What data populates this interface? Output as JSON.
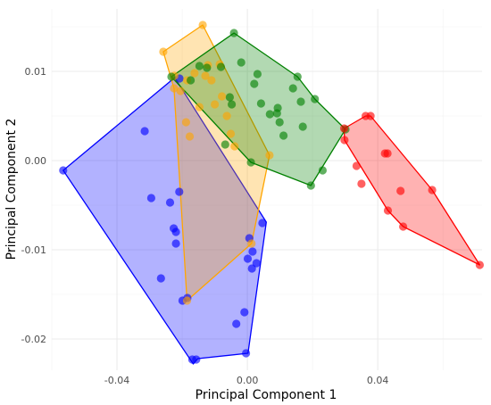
{
  "chart_data": {
    "type": "scatter",
    "title": "",
    "xlabel": "Principal Component 1",
    "ylabel": "Principal Component 2",
    "xlim": [
      -0.06,
      0.072
    ],
    "ylim": [
      -0.0235,
      0.017
    ],
    "x_ticks": [
      -0.04,
      0.0,
      0.04
    ],
    "x_tick_labels": [
      "-0.04",
      "0.00",
      "0.04"
    ],
    "y_ticks": [
      -0.02,
      -0.01,
      0.0,
      0.01
    ],
    "y_tick_labels": [
      "-0.02",
      "-0.01",
      "0.00",
      "0.01"
    ],
    "grid": true,
    "series": [
      {
        "color": "#0000ff",
        "hull": [
          [
            -0.0565,
            -0.0011
          ],
          [
            -0.0223,
            0.0093
          ],
          [
            0.0058,
            -0.0069
          ],
          [
            0.0002,
            -0.0216
          ],
          [
            -0.0152,
            -0.0222
          ],
          [
            -0.0166,
            -0.0228
          ]
        ],
        "points": [
          [
            -0.0565,
            -0.0011
          ],
          [
            -0.0315,
            0.0033
          ],
          [
            -0.0295,
            -0.0042
          ],
          [
            -0.0237,
            -0.0047
          ],
          [
            -0.0265,
            -0.0132
          ],
          [
            -0.0209,
            -0.0035
          ],
          [
            -0.0226,
            -0.0076
          ],
          [
            -0.0219,
            -0.0093
          ],
          [
            -0.0219,
            -0.008
          ],
          [
            -0.0184,
            -0.0154
          ],
          [
            -0.0199,
            -0.0157
          ],
          [
            -0.0169,
            -0.0223
          ],
          [
            -0.0157,
            -0.0223
          ],
          [
            0.0001,
            -0.011
          ],
          [
            0.0014,
            -0.0121
          ],
          [
            0.0006,
            -0.0087
          ],
          [
            0.0016,
            -0.0102
          ],
          [
            0.0028,
            -0.0115
          ],
          [
            0.0046,
            -0.007
          ],
          [
            -0.0034,
            -0.0183
          ],
          [
            -0.0004,
            -0.0216
          ],
          [
            -0.0009,
            -0.017
          ],
          [
            -0.0208,
            0.0092
          ]
        ]
      },
      {
        "color": "#ffa500",
        "hull": [
          [
            -0.0258,
            0.0122
          ],
          [
            -0.0137,
            0.0152
          ],
          [
            0.0068,
            0.0006
          ],
          [
            0.0013,
            -0.0093
          ],
          [
            -0.0185,
            -0.0157
          ],
          [
            -0.0225,
            0.0081
          ]
        ],
        "points": [
          [
            -0.0258,
            0.0122
          ],
          [
            -0.0137,
            0.0152
          ],
          [
            -0.0224,
            0.0095
          ],
          [
            -0.0205,
            0.0078
          ],
          [
            -0.0185,
            0.009
          ],
          [
            -0.0188,
            0.0043
          ],
          [
            -0.0177,
            0.0027
          ],
          [
            -0.0162,
            0.0098
          ],
          [
            -0.0147,
            0.006
          ],
          [
            -0.0121,
            0.0107
          ],
          [
            -0.0129,
            0.0095
          ],
          [
            -0.01,
            0.0063
          ],
          [
            -0.0085,
            0.0108
          ],
          [
            -0.0078,
            0.0072
          ],
          [
            -0.0063,
            0.005
          ],
          [
            -0.0051,
            0.003
          ],
          [
            -0.0039,
            0.0016
          ],
          [
            0.0068,
            0.0006
          ],
          [
            0.0013,
            -0.0093
          ],
          [
            -0.0185,
            -0.0157
          ],
          [
            -0.0225,
            0.0081
          ],
          [
            -0.011,
            0.009
          ]
        ]
      },
      {
        "color": "#008000",
        "hull": [
          [
            -0.0233,
            0.0094
          ],
          [
            -0.0041,
            0.0143
          ],
          [
            0.0154,
            0.0094
          ],
          [
            0.0207,
            0.0069
          ],
          [
            0.0301,
            0.0035
          ],
          [
            0.0195,
            -0.0028
          ],
          [
            0.0011,
            -0.0002
          ]
        ],
        "points": [
          [
            -0.0233,
            0.0094
          ],
          [
            -0.0041,
            0.0143
          ],
          [
            0.0154,
            0.0094
          ],
          [
            0.0207,
            0.0069
          ],
          [
            0.0301,
            0.0035
          ],
          [
            0.0195,
            -0.0028
          ],
          [
            0.0231,
            -0.0011
          ],
          [
            0.0091,
            0.0053
          ],
          [
            0.0099,
            0.0043
          ],
          [
            0.014,
            0.0081
          ],
          [
            0.017,
            0.0038
          ],
          [
            0.0164,
            0.0066
          ],
          [
            0.0111,
            0.0028
          ],
          [
            0.0069,
            0.0052
          ],
          [
            0.0042,
            0.0064
          ],
          [
            0.0021,
            0.0086
          ],
          [
            0.0031,
            0.0097
          ],
          [
            -0.0054,
            0.0071
          ],
          [
            -0.0081,
            0.0105
          ],
          [
            -0.0048,
            0.0063
          ],
          [
            0.0093,
            0.0059
          ],
          [
            -0.0019,
            0.011
          ],
          [
            -0.0124,
            0.0104
          ],
          [
            -0.0147,
            0.0106
          ],
          [
            -0.0174,
            0.009
          ],
          [
            -0.0068,
            0.0018
          ],
          [
            0.0011,
            -0.0002
          ]
        ]
      },
      {
        "color": "#ff0000",
        "hull": [
          [
            0.0297,
            0.0036
          ],
          [
            0.0363,
            0.005
          ],
          [
            0.0378,
            0.005
          ],
          [
            0.0567,
            -0.0033
          ],
          [
            0.0713,
            -0.0117
          ],
          [
            0.0478,
            -0.0074
          ],
          [
            0.0431,
            -0.0056
          ],
          [
            0.0298,
            0.0023
          ]
        ],
        "points": [
          [
            0.0297,
            0.0036
          ],
          [
            0.0363,
            0.005
          ],
          [
            0.0378,
            0.005
          ],
          [
            0.0567,
            -0.0033
          ],
          [
            0.0713,
            -0.0117
          ],
          [
            0.0478,
            -0.0074
          ],
          [
            0.0431,
            -0.0056
          ],
          [
            0.0298,
            0.0023
          ],
          [
            0.0335,
            -0.0006
          ],
          [
            0.0422,
            0.0008
          ],
          [
            0.043,
            0.0008
          ],
          [
            0.035,
            -0.0026
          ],
          [
            0.047,
            -0.0034
          ]
        ]
      }
    ]
  }
}
